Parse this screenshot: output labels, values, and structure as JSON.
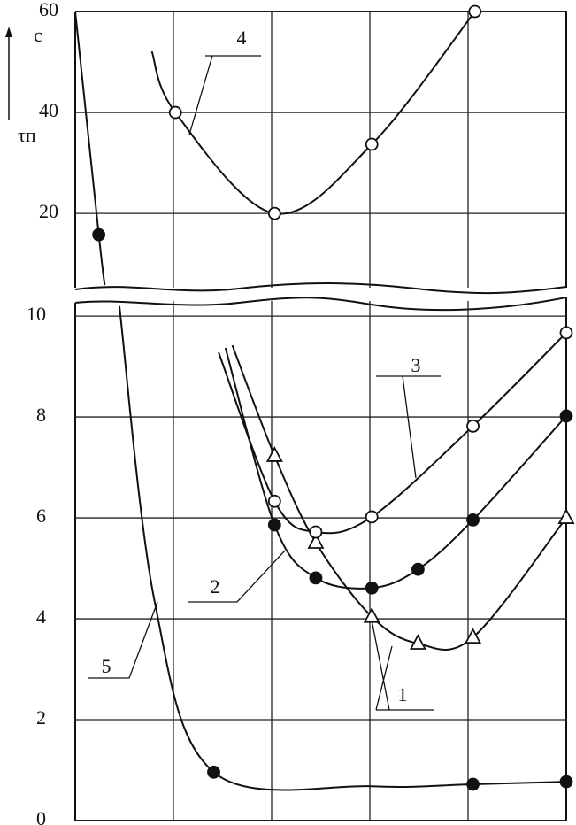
{
  "chart_data": [
    {
      "type": "line",
      "y_label": "τп",
      "y_unit": "c",
      "xlim": [
        0,
        5
      ],
      "xticks": [
        1,
        2,
        3,
        4
      ],
      "ylim": [
        5.3,
        60
      ],
      "yticks": [
        20,
        40,
        60
      ],
      "grid": true,
      "annotations": [
        "4"
      ],
      "series": [
        {
          "name": "4",
          "marker": "open-circle",
          "x": [
            0.78,
            1.02,
            2.03,
            3.02,
            4.07
          ],
          "values": [
            52.1,
            40,
            20,
            33.7,
            60
          ],
          "marked": [
            false,
            true,
            true,
            true,
            true
          ]
        },
        {
          "name": "5",
          "marker": "filled-circle",
          "x": [
            0,
            0.24,
            0.3
          ],
          "values": [
            60,
            15.8,
            5.8
          ],
          "marked": [
            false,
            true,
            false
          ]
        }
      ]
    },
    {
      "type": "line",
      "xlim": [
        0,
        5
      ],
      "xticks": [
        1,
        2,
        3,
        4
      ],
      "ylim": [
        0,
        10.3
      ],
      "yticks": [
        0,
        2,
        4,
        6,
        8,
        10
      ],
      "grid": true,
      "annotations": [
        "1",
        "2",
        "3",
        "5"
      ],
      "series": [
        {
          "name": "1",
          "marker": "triangle",
          "x": [
            1.6,
            2.03,
            2.45,
            3.02,
            3.49,
            4.05,
            5
          ],
          "values": [
            9.42,
            7.23,
            5.51,
            4.04,
            3.51,
            3.63,
            6.0
          ],
          "marked": [
            false,
            true,
            true,
            true,
            true,
            true,
            true
          ]
        },
        {
          "name": "2",
          "marker": "filled-circle",
          "x": [
            1.53,
            2.03,
            2.45,
            3.02,
            3.49,
            4.05,
            5
          ],
          "values": [
            9.37,
            5.86,
            4.81,
            4.61,
            4.98,
            5.96,
            8.02
          ],
          "marked": [
            false,
            true,
            true,
            true,
            true,
            true,
            true
          ]
        },
        {
          "name": "3",
          "marker": "open-circle",
          "x": [
            1.46,
            2.03,
            2.45,
            3.02,
            4.05,
            5
          ],
          "values": [
            9.28,
            6.33,
            5.72,
            6.02,
            7.82,
            9.67
          ],
          "marked": [
            false,
            true,
            true,
            true,
            true,
            true
          ]
        },
        {
          "name": "5",
          "marker": "filled-circle",
          "x": [
            0.45,
            0.81,
            1.41,
            3.02,
            4.05,
            5
          ],
          "values": [
            10.2,
            4.33,
            0.96,
            0.68,
            0.72,
            0.77
          ],
          "marked": [
            false,
            false,
            true,
            false,
            true,
            true
          ]
        }
      ]
    }
  ]
}
